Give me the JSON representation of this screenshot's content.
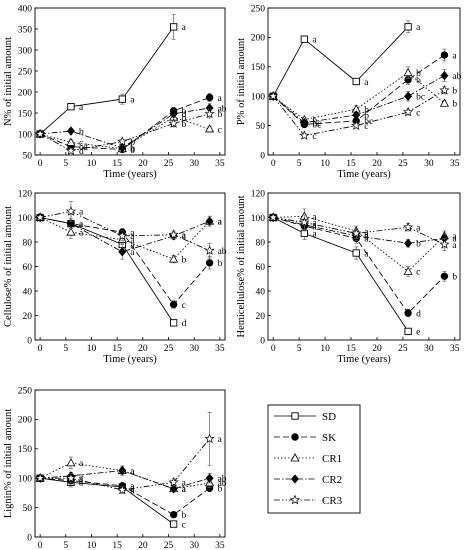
{
  "figure": {
    "legend": {
      "position": "lower-right panel",
      "entries": [
        {
          "label": "SD",
          "marker": "square-open",
          "dash": "none"
        },
        {
          "label": "SK",
          "marker": "circle-filled",
          "dash": "6,3"
        },
        {
          "label": "CR1",
          "marker": "triangle-open",
          "dash": "1.5,2"
        },
        {
          "label": "CR2",
          "marker": "diamond-filled",
          "dash": "6,2,1.5,2"
        },
        {
          "label": "CR3",
          "marker": "star-open",
          "dash": "6,2,1.5,2,1.5,2"
        }
      ]
    }
  },
  "chart_data": [
    {
      "type": "line",
      "xlabel": "Time (years)",
      "ylabel": "N% of initial amount",
      "xlim": [
        -1,
        36
      ],
      "ylim": [
        50,
        400
      ],
      "xticks": [
        0,
        5,
        10,
        15,
        20,
        25,
        30,
        35
      ],
      "yticks": [
        50,
        100,
        150,
        200,
        250,
        300,
        350,
        400
      ],
      "series": [
        {
          "name": "SD",
          "points": [
            [
              0,
              100,
              "",
              0
            ],
            [
              6,
              165,
              "a",
              5
            ],
            [
              16,
              183,
              "a",
              12
            ],
            [
              26,
              355,
              "a",
              30
            ]
          ]
        },
        {
          "name": "SK",
          "points": [
            [
              0,
              100,
              "",
              0
            ],
            [
              6,
              70,
              "cd",
              5
            ],
            [
              16,
              63,
              "b",
              4
            ],
            [
              26,
              155,
              "b",
              8
            ],
            [
              33,
              187,
              "a",
              10
            ]
          ]
        },
        {
          "name": "CR1",
          "points": [
            [
              0,
              100,
              "",
              0
            ],
            [
              6,
              80,
              "c",
              6
            ],
            [
              16,
              65,
              "b",
              5
            ],
            [
              26,
              140,
              "b",
              8
            ],
            [
              33,
              112,
              "c",
              6
            ]
          ]
        },
        {
          "name": "CR2",
          "points": [
            [
              0,
              100,
              "",
              0
            ],
            [
              6,
              107,
              "b",
              5
            ],
            [
              16,
              67,
              "b",
              4
            ],
            [
              26,
              148,
              "b",
              8
            ],
            [
              33,
              162,
              "ab",
              10
            ]
          ]
        },
        {
          "name": "CR3",
          "points": [
            [
              0,
              100,
              "",
              0
            ],
            [
              6,
              60,
              "d",
              5
            ],
            [
              16,
              82,
              "b",
              5
            ],
            [
              26,
              125,
              "b",
              8
            ],
            [
              33,
              148,
              "b",
              10
            ]
          ]
        }
      ]
    },
    {
      "type": "line",
      "xlabel": "Time (years)",
      "ylabel": "P% of initial amount",
      "xlim": [
        -1,
        36
      ],
      "ylim": [
        0,
        250
      ],
      "xticks": [
        0,
        5,
        10,
        15,
        20,
        25,
        30,
        35
      ],
      "yticks": [
        0,
        50,
        100,
        150,
        200,
        250
      ],
      "series": [
        {
          "name": "SD",
          "points": [
            [
              0,
              100,
              "",
              0
            ],
            [
              6,
              197,
              "a",
              3
            ],
            [
              16,
              125,
              "a",
              4
            ],
            [
              26,
              218,
              "a",
              10
            ]
          ]
        },
        {
          "name": "SK",
          "points": [
            [
              0,
              100,
              "",
              0
            ],
            [
              6,
              52,
              "bc",
              4
            ],
            [
              16,
              58,
              "bc",
              5
            ],
            [
              26,
              128,
              "b",
              8
            ],
            [
              33,
              170,
              "a",
              10
            ]
          ]
        },
        {
          "name": "CR1",
          "points": [
            [
              0,
              100,
              "",
              0
            ],
            [
              6,
              60,
              "b",
              4
            ],
            [
              16,
              78,
              "b",
              6
            ],
            [
              26,
              140,
              "b",
              10
            ],
            [
              33,
              88,
              "b",
              5
            ]
          ]
        },
        {
          "name": "CR2",
          "points": [
            [
              0,
              100,
              "",
              0
            ],
            [
              6,
              55,
              "bc",
              4
            ],
            [
              16,
              68,
              "b",
              5
            ],
            [
              26,
              100,
              "bc",
              8
            ],
            [
              33,
              135,
              "ab",
              10
            ]
          ]
        },
        {
          "name": "CR3",
          "points": [
            [
              0,
              100,
              "",
              0
            ],
            [
              6,
              33,
              "c",
              4
            ],
            [
              16,
              50,
              "c",
              4
            ],
            [
              26,
              73,
              "c",
              5
            ],
            [
              33,
              110,
              "b",
              6
            ]
          ]
        }
      ]
    },
    {
      "type": "line",
      "xlabel": "Time (years)",
      "ylabel": "Cellulose% of initial amount",
      "xlim": [
        -1,
        36
      ],
      "ylim": [
        0,
        120
      ],
      "xticks": [
        0,
        5,
        10,
        15,
        20,
        25,
        30,
        35
      ],
      "yticks": [
        0,
        20,
        40,
        60,
        80,
        100,
        120
      ],
      "series": [
        {
          "name": "SD",
          "points": [
            [
              0,
              100,
              "",
              0
            ],
            [
              6,
              95,
              "a",
              8
            ],
            [
              16,
              78,
              "a",
              5
            ],
            [
              26,
              14,
              "d",
              2
            ]
          ]
        },
        {
          "name": "SK",
          "points": [
            [
              0,
              100,
              "",
              0
            ],
            [
              6,
              95,
              "a",
              4
            ],
            [
              16,
              88,
              "a",
              3
            ],
            [
              26,
              29,
              "c",
              3
            ],
            [
              33,
              63,
              "b",
              5
            ]
          ]
        },
        {
          "name": "CR1",
          "points": [
            [
              0,
              100,
              "",
              0
            ],
            [
              6,
              88,
              "a",
              5
            ],
            [
              16,
              82,
              "a",
              3
            ],
            [
              26,
              66,
              "b",
              3
            ],
            [
              33,
              97,
              "a",
              4
            ]
          ]
        },
        {
          "name": "CR2",
          "points": [
            [
              0,
              100,
              "",
              0
            ],
            [
              6,
              95,
              "a",
              4
            ],
            [
              16,
              72,
              "a",
              6
            ],
            [
              26,
              85,
              "a",
              3
            ],
            [
              33,
              97,
              "a",
              4
            ]
          ]
        },
        {
          "name": "CR3",
          "points": [
            [
              0,
              100,
              "",
              0
            ],
            [
              6,
              105,
              "a",
              8
            ],
            [
              16,
              85,
              "a",
              4
            ],
            [
              26,
              86,
              "a",
              3
            ],
            [
              33,
              73,
              "ab",
              6
            ]
          ]
        }
      ]
    },
    {
      "type": "line",
      "xlabel": "Time (years)",
      "ylabel": "Hemicellulose% of initial amount",
      "xlim": [
        -1,
        36
      ],
      "ylim": [
        0,
        120
      ],
      "xticks": [
        0,
        5,
        10,
        15,
        20,
        25,
        30,
        35
      ],
      "yticks": [
        0,
        20,
        40,
        60,
        80,
        100,
        120
      ],
      "series": [
        {
          "name": "SD",
          "points": [
            [
              0,
              100,
              "",
              0
            ],
            [
              6,
              87,
              "a",
              5
            ],
            [
              16,
              71,
              "a",
              5
            ],
            [
              26,
              7,
              "e",
              2
            ]
          ]
        },
        {
          "name": "SK",
          "points": [
            [
              0,
              100,
              "",
              0
            ],
            [
              6,
              93,
              "a",
              4
            ],
            [
              16,
              83,
              "a",
              4
            ],
            [
              26,
              22,
              "d",
              3
            ],
            [
              33,
              52,
              "b",
              4
            ]
          ]
        },
        {
          "name": "CR1",
          "points": [
            [
              0,
              100,
              "",
              0
            ],
            [
              6,
              101,
              "a",
              6
            ],
            [
              16,
              89,
              "a",
              4
            ],
            [
              26,
              56,
              "c",
              4
            ],
            [
              33,
              85,
              "a",
              4
            ]
          ]
        },
        {
          "name": "CR2",
          "points": [
            [
              0,
              100,
              "",
              0
            ],
            [
              6,
              94,
              "a",
              4
            ],
            [
              16,
              85,
              "a",
              4
            ],
            [
              26,
              79,
              "b",
              3
            ],
            [
              33,
              83,
              "a",
              4
            ]
          ]
        },
        {
          "name": "CR3",
          "points": [
            [
              0,
              100,
              "",
              0
            ],
            [
              6,
              96,
              "a",
              6
            ],
            [
              16,
              87,
              "a",
              4
            ],
            [
              26,
              92,
              "a",
              3
            ],
            [
              33,
              78,
              "a",
              5
            ]
          ]
        }
      ]
    },
    {
      "type": "line",
      "xlabel": "Time (years)",
      "ylabel": "Lignin% of initial amount",
      "xlim": [
        -1,
        36
      ],
      "ylim": [
        0,
        250
      ],
      "xticks": [
        0,
        5,
        10,
        15,
        20,
        25,
        30,
        35
      ],
      "yticks": [
        0,
        50,
        100,
        150,
        200,
        250
      ],
      "series": [
        {
          "name": "SD",
          "points": [
            [
              0,
              100,
              "",
              0
            ],
            [
              6,
              93,
              "a",
              8
            ],
            [
              16,
              85,
              "a",
              6
            ],
            [
              26,
              22,
              "c",
              3
            ]
          ]
        },
        {
          "name": "SK",
          "points": [
            [
              0,
              100,
              "",
              0
            ],
            [
              6,
              96,
              "a",
              6
            ],
            [
              16,
              87,
              "a",
              5
            ],
            [
              26,
              38,
              "b",
              4
            ],
            [
              33,
              83,
              "b",
              6
            ]
          ]
        },
        {
          "name": "CR1",
          "points": [
            [
              0,
              100,
              "",
              0
            ],
            [
              6,
              126,
              "a",
              10
            ],
            [
              16,
              113,
              "a",
              8
            ],
            [
              26,
              82,
              "a",
              5
            ],
            [
              33,
              92,
              "ab",
              8
            ]
          ]
        },
        {
          "name": "CR2",
          "points": [
            [
              0,
              100,
              "",
              0
            ],
            [
              6,
              104,
              "a",
              6
            ],
            [
              16,
              113,
              "a",
              6
            ],
            [
              26,
              82,
              "a",
              5
            ],
            [
              33,
              100,
              "ab",
              8
            ]
          ]
        },
        {
          "name": "CR3",
          "points": [
            [
              0,
              100,
              "",
              0
            ],
            [
              6,
              100,
              "a",
              8
            ],
            [
              16,
              80,
              "a",
              6
            ],
            [
              26,
              93,
              "a",
              6
            ],
            [
              33,
              167,
              "a",
              45
            ]
          ]
        }
      ]
    }
  ]
}
